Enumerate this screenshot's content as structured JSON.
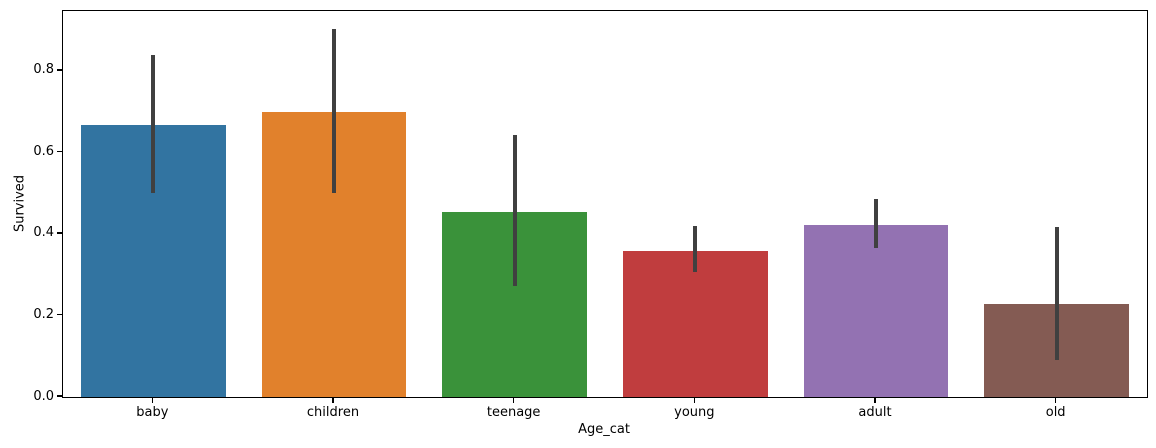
{
  "chart_data": {
    "type": "bar",
    "title": "",
    "xlabel": "Age_cat",
    "ylabel": "Survived",
    "categories": [
      "baby",
      "children",
      "teenage",
      "young",
      "adult",
      "old"
    ],
    "values": [
      0.667,
      0.7,
      0.455,
      0.358,
      0.423,
      0.228
    ],
    "error_low": [
      0.5,
      0.5,
      0.272,
      0.306,
      0.366,
      0.091
    ],
    "error_high": [
      0.84,
      0.903,
      0.644,
      0.419,
      0.486,
      0.416
    ],
    "bar_colors": [
      "#3274a1",
      "#e1812c",
      "#3a923a",
      "#c03d3e",
      "#9372b2",
      "#845b53"
    ],
    "error_color": "#404040",
    "yticks": [
      0.0,
      0.2,
      0.4,
      0.6,
      0.8
    ],
    "ytick_labels": [
      "0.0",
      "0.2",
      "0.4",
      "0.6",
      "0.8"
    ],
    "ylim": [
      0,
      0.947
    ],
    "grid": false,
    "legend": null,
    "bar_width_fraction": 0.8
  }
}
